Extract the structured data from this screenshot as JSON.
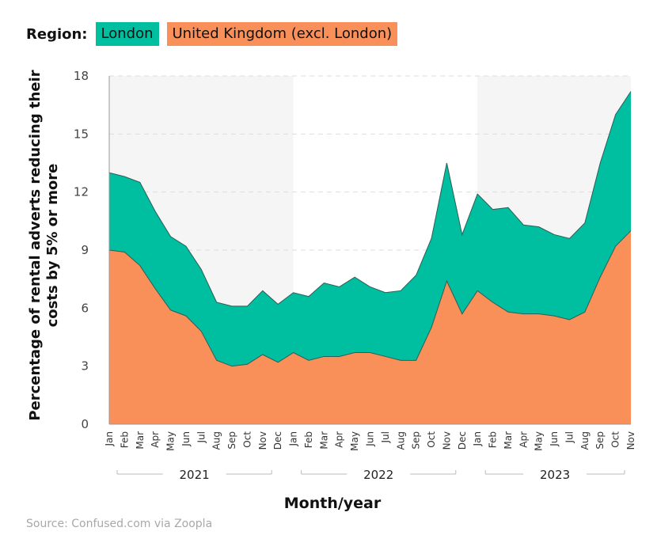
{
  "chart_data": {
    "type": "area",
    "legend": {
      "title": "Region:",
      "placement": "top-left"
    },
    "xlabel": "Month/year",
    "ylabel": "Percentage of rental adverts reducing their costs by 5% or more",
    "ylim": [
      0,
      18
    ],
    "yticks": [
      0,
      3,
      6,
      9,
      12,
      15,
      18
    ],
    "grid": "horizontal dashed",
    "months": [
      "Jan",
      "Feb",
      "Mar",
      "Apr",
      "May",
      "Jun",
      "Jul",
      "Aug",
      "Sep",
      "Oct",
      "Nov",
      "Dec",
      "Jan",
      "Feb",
      "Mar",
      "Apr",
      "May",
      "Jun",
      "Jul",
      "Aug",
      "Sep",
      "Oct",
      "Nov",
      "Dec",
      "Jan",
      "Feb",
      "Mar",
      "Apr",
      "May",
      "Jun",
      "Jul",
      "Aug",
      "Sep",
      "Oct",
      "Nov"
    ],
    "years": [
      {
        "label": "2021",
        "start": 0,
        "end": 11,
        "shaded": true
      },
      {
        "label": "2022",
        "start": 12,
        "end": 23,
        "shaded": false
      },
      {
        "label": "2023",
        "start": 24,
        "end": 34,
        "shaded": true
      }
    ],
    "series": [
      {
        "name": "London",
        "color": "#00BFA0",
        "values": [
          13.0,
          12.8,
          12.5,
          11.0,
          9.7,
          9.2,
          8.0,
          6.3,
          6.1,
          6.1,
          6.9,
          6.2,
          6.8,
          6.6,
          7.3,
          7.1,
          7.6,
          7.1,
          6.8,
          6.9,
          7.7,
          9.6,
          13.5,
          9.8,
          11.9,
          11.1,
          11.2,
          10.3,
          10.2,
          9.8,
          9.6,
          10.4,
          13.5,
          16.0,
          17.2
        ]
      },
      {
        "name": "United Kingdom (excl. London)",
        "color": "#F9905A",
        "values": [
          9.0,
          8.9,
          8.2,
          7.0,
          5.9,
          5.6,
          4.8,
          3.3,
          3.0,
          3.1,
          3.6,
          3.2,
          3.7,
          3.3,
          3.5,
          3.5,
          3.7,
          3.7,
          3.5,
          3.3,
          3.3,
          5.0,
          7.4,
          5.7,
          6.9,
          6.3,
          5.8,
          5.7,
          5.7,
          5.6,
          5.4,
          5.8,
          7.6,
          9.2,
          10.0
        ]
      }
    ]
  },
  "source": "Source: Confused.com via Zoopla"
}
